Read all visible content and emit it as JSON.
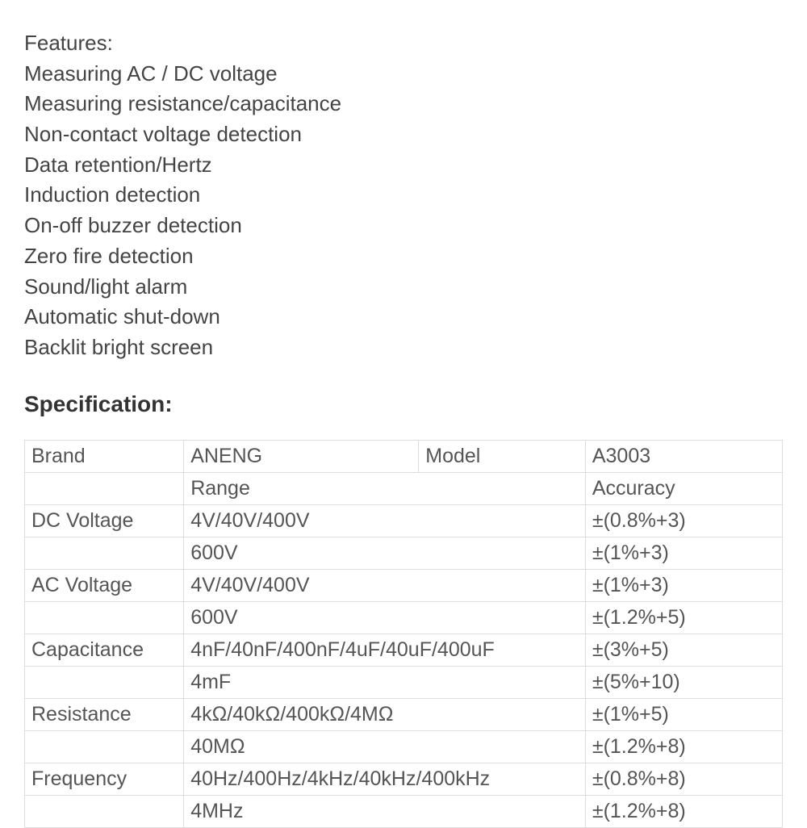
{
  "features": {
    "title": "Features:",
    "items": [
      "Measuring AC / DC voltage",
      "Measuring resistance/capacitance",
      "Non-contact voltage detection",
      "Data retention/Hertz",
      "Induction detection",
      "On-off buzzer detection",
      "Zero fire detection",
      "Sound/light alarm",
      "Automatic shut-down",
      "Backlit bright screen"
    ]
  },
  "spec": {
    "heading": "Specification:",
    "table": {
      "header_row": {
        "brand_label": "Brand",
        "brand_value": "ANENG",
        "model_label": "Model",
        "model_value": "A3003"
      },
      "range_accuracy_row": {
        "range_label": "Range",
        "accuracy_label": "Accuracy"
      },
      "rows": [
        {
          "label": "DC Voltage",
          "range": "4V/40V/400V",
          "accuracy": "±(0.8%+3)"
        },
        {
          "label": "",
          "range": "600V",
          "accuracy": "±(1%+3)"
        },
        {
          "label": "AC Voltage",
          "range": "4V/40V/400V",
          "accuracy": "±(1%+3)"
        },
        {
          "label": "",
          "range": "600V",
          "accuracy": "±(1.2%+5)"
        },
        {
          "label": "Capacitance",
          "range": "4nF/40nF/400nF/4uF/40uF/400uF",
          "accuracy": "±(3%+5)"
        },
        {
          "label": "",
          "range": "4mF",
          "accuracy": "±(5%+10)"
        },
        {
          "label": "Resistance",
          "range": "4kΩ/40kΩ/400kΩ/4MΩ",
          "accuracy": "±(1%+5)"
        },
        {
          "label": "",
          "range": "40MΩ",
          "accuracy": "±(1.2%+8)"
        },
        {
          "label": "Frequency",
          "range": "40Hz/400Hz/4kHz/40kHz/400kHz",
          "accuracy": "±(0.8%+8)"
        },
        {
          "label": "",
          "range": "4MHz",
          "accuracy": "±(1.2%+8)"
        }
      ]
    }
  },
  "style": {
    "background_color": "#ffffff",
    "text_color": "#444444",
    "border_color": "#dddddd",
    "heading_color": "#333333",
    "body_fontsize": 26,
    "heading_fontsize": 28,
    "table_fontsize": 25
  }
}
